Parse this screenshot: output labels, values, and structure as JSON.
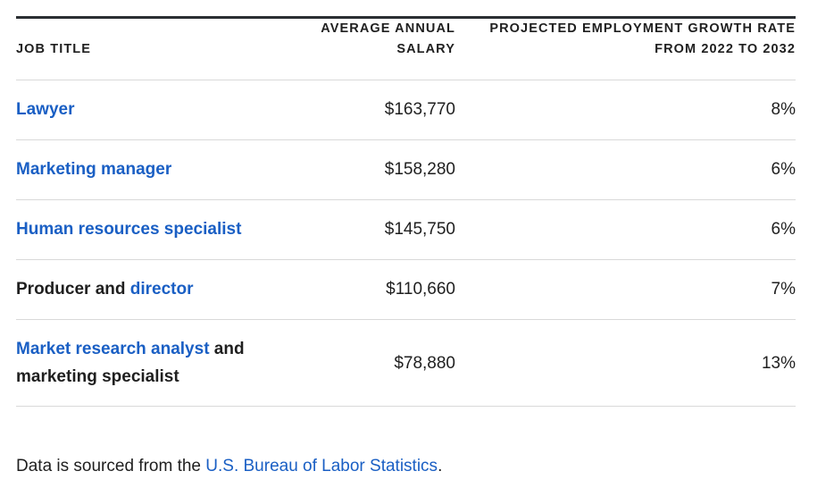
{
  "table": {
    "headers": {
      "job_title": "JOB TITLE",
      "salary_line1": "AVERAGE ANNUAL",
      "salary_line2": "SALARY",
      "growth_line1": "PROJECTED EMPLOYMENT GROWTH RATE",
      "growth_line2": "FROM 2022 TO 2032"
    },
    "rows": [
      {
        "link1": "Lawyer",
        "text1": "",
        "link2": "",
        "text2": "",
        "salary": "$163,770",
        "growth": "8%"
      },
      {
        "link1": "Marketing manager",
        "text1": "",
        "link2": "",
        "text2": "",
        "salary": "$158,280",
        "growth": "6%"
      },
      {
        "link1": "Human resources specialist",
        "text1": "",
        "link2": "",
        "text2": "",
        "salary": "$145,750",
        "growth": "6%"
      },
      {
        "link1": "",
        "text1": "Producer and ",
        "link2": "director",
        "text2": "",
        "salary": "$110,660",
        "growth": "7%"
      },
      {
        "link1": "Market research analyst",
        "text1": " and marketing specialist",
        "link2": "",
        "text2": "",
        "salary": "$78,880",
        "growth": "13%"
      }
    ]
  },
  "footer": {
    "prefix": "Data is sourced from the ",
    "link": "U.S. Bureau of Labor Statistics",
    "suffix": "."
  },
  "colors": {
    "link": "#1a5fc4",
    "text": "#1f1f1f",
    "rule": "#2b2f33",
    "divider": "#d9d9d9"
  }
}
